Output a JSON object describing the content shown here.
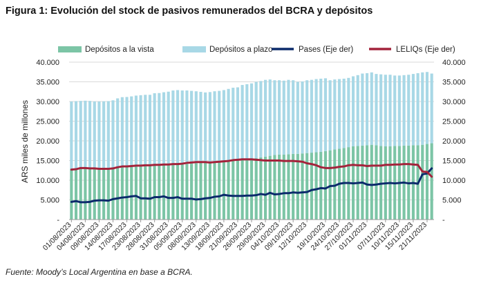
{
  "title": "Figura 1: Evolución del stock de pasivos remunerados del BCRA y depósitos",
  "source": "Fuente: Moody’s Local Argentina en base a BCRA.",
  "chart_data": {
    "type": "bar",
    "stacked": true,
    "ylabel": "ARS miles de millones",
    "ylim": [
      0,
      40000
    ],
    "y2lim": [
      0,
      40000
    ],
    "ytick_labels": [
      "-",
      "5.000",
      "10.000",
      "15.000",
      "20.000",
      "25.000",
      "30.000",
      "35.000",
      "40.000"
    ],
    "y2tick_labels": [
      "-",
      "5.000",
      "10.000",
      "15.000",
      "20.000",
      "25.000",
      "30.000",
      "35.000",
      "40.000"
    ],
    "grid": true,
    "legend_position": "top",
    "categories": [
      "01/08/2023",
      "02/08/2023",
      "03/08/2023",
      "04/08/2023",
      "07/08/2023",
      "08/08/2023",
      "09/08/2023",
      "10/08/2023",
      "11/08/2023",
      "14/08/2023",
      "15/08/2023",
      "16/08/2023",
      "17/08/2023",
      "18/08/2023",
      "22/08/2023",
      "23/08/2023",
      "24/08/2023",
      "25/08/2023",
      "28/08/2023",
      "29/08/2023",
      "30/08/2023",
      "31/08/2023",
      "01/09/2023",
      "04/09/2023",
      "05/09/2023",
      "06/09/2023",
      "07/09/2023",
      "08/09/2023",
      "11/09/2023",
      "12/09/2023",
      "13/09/2023",
      "14/09/2023",
      "15/09/2023",
      "18/09/2023",
      "19/09/2023",
      "20/09/2023",
      "21/09/2023",
      "22/09/2023",
      "25/09/2023",
      "26/09/2023",
      "27/09/2023",
      "28/09/2023",
      "29/09/2023",
      "02/10/2023",
      "03/10/2023",
      "04/10/2023",
      "05/10/2023",
      "06/10/2023",
      "09/10/2023",
      "10/10/2023",
      "11/10/2023",
      "12/10/2023",
      "13/10/2023",
      "17/10/2023",
      "18/10/2023",
      "19/10/2023",
      "20/10/2023",
      "23/10/2023",
      "24/10/2023",
      "25/10/2023",
      "26/10/2023",
      "27/10/2023",
      "30/10/2023",
      "31/10/2023",
      "01/11/2023",
      "02/11/2023",
      "03/11/2023",
      "06/11/2023",
      "07/11/2023",
      "08/11/2023",
      "09/11/2023",
      "10/11/2023",
      "13/11/2023",
      "14/11/2023",
      "15/11/2023",
      "16/11/2023",
      "17/11/2023",
      "21/11/2023",
      "22/11/2023"
    ],
    "xtick_labels": [
      "01/08/2023",
      "04/08/2023",
      "09/08/2023",
      "14/08/2023",
      "17/08/2023",
      "23/08/2023",
      "28/08/2023",
      "31/08/2023",
      "05/09/2023",
      "08/09/2023",
      "13/09/2023",
      "18/09/2023",
      "21/09/2023",
      "26/09/2023",
      "29/09/2023",
      "04/10/2023",
      "09/10/2023",
      "12/10/2023",
      "19/10/2023",
      "24/10/2023",
      "27/10/2023",
      "01/11/2023",
      "07/11/2023",
      "10/11/2023",
      "15/11/2023",
      "21/11/2023"
    ],
    "series": [
      {
        "name": "Depósitos a la vista",
        "kind": "bar",
        "axis": "left",
        "color": "#7cc5a6",
        "values": [
          12900,
          12950,
          13000,
          13050,
          13000,
          13000,
          12950,
          12950,
          13000,
          13100,
          13200,
          13300,
          13350,
          13400,
          13450,
          13500,
          13550,
          13600,
          13700,
          13750,
          13800,
          13850,
          13900,
          13950,
          14000,
          14100,
          14200,
          14300,
          14400,
          14500,
          14550,
          14600,
          14700,
          14800,
          14900,
          15000,
          15100,
          15200,
          15300,
          15400,
          15600,
          15800,
          16000,
          16200,
          16400,
          16500,
          16500,
          16600,
          16700,
          16700,
          16800,
          16900,
          17000,
          17100,
          17200,
          17400,
          17600,
          17800,
          18000,
          18200,
          18400,
          18600,
          18700,
          18800,
          18900,
          19000,
          18900,
          18700,
          18600,
          18600,
          18700,
          18700,
          18800,
          18800,
          18900,
          18900,
          19000,
          19200,
          19400
        ]
      },
      {
        "name": "Depósitos a plazo",
        "kind": "bar",
        "axis": "left",
        "color": "#a8d8e6",
        "values": [
          17100,
          17150,
          17150,
          17150,
          17150,
          17000,
          17050,
          17100,
          17100,
          17200,
          17600,
          17800,
          17800,
          17900,
          18050,
          18100,
          18150,
          18100,
          18400,
          18400,
          18550,
          18650,
          18900,
          18950,
          18800,
          18700,
          18500,
          18300,
          18050,
          17800,
          17850,
          18000,
          18000,
          18100,
          18300,
          18500,
          18500,
          19000,
          19100,
          19200,
          19400,
          19400,
          19500,
          19400,
          19000,
          18900,
          18800,
          18900,
          18700,
          18300,
          18300,
          18500,
          18500,
          18600,
          18600,
          18500,
          17800,
          17800,
          17700,
          17600,
          17600,
          17800,
          18000,
          18300,
          18300,
          18400,
          18100,
          18200,
          18200,
          18200,
          17900,
          17900,
          17900,
          18000,
          18100,
          18300,
          18400,
          18300,
          17700
        ]
      },
      {
        "name": "Pases (Eje der)",
        "kind": "line",
        "axis": "right",
        "color": "#0b2a6b",
        "values": [
          4500,
          4700,
          4400,
          4400,
          4500,
          4800,
          4900,
          4900,
          4800,
          5200,
          5400,
          5600,
          5700,
          5900,
          6000,
          5400,
          5400,
          5300,
          5700,
          5700,
          5900,
          5500,
          5500,
          5700,
          5300,
          5300,
          5300,
          5100,
          5200,
          5400,
          5500,
          5800,
          5900,
          6300,
          6100,
          6000,
          6000,
          6000,
          6100,
          6100,
          6200,
          6500,
          6300,
          6800,
          6400,
          6500,
          6700,
          6700,
          6900,
          6800,
          6900,
          7000,
          7500,
          7700,
          8000,
          7900,
          8500,
          8600,
          9100,
          9300,
          9300,
          9200,
          9300,
          9400,
          8900,
          8800,
          8900,
          9100,
          9200,
          9300,
          9200,
          9300,
          9400,
          9200,
          9300,
          9100,
          11500,
          11700,
          13000
        ]
      },
      {
        "name": "LELIQs (Eje der)",
        "kind": "line",
        "axis": "right",
        "color": "#a3233b",
        "values": [
          12700,
          12800,
          13100,
          13100,
          13000,
          13000,
          12900,
          12900,
          12900,
          13000,
          13300,
          13500,
          13500,
          13600,
          13700,
          13700,
          13800,
          13800,
          13900,
          13900,
          14000,
          14000,
          14100,
          14100,
          14200,
          14400,
          14500,
          14600,
          14600,
          14600,
          14500,
          14600,
          14700,
          14800,
          14900,
          15100,
          15200,
          15300,
          15300,
          15300,
          15200,
          15100,
          15000,
          15000,
          15000,
          15000,
          14900,
          14900,
          14900,
          14800,
          14700,
          14300,
          14100,
          13800,
          13300,
          13100,
          13100,
          13200,
          13400,
          13500,
          13800,
          13900,
          13800,
          13800,
          13600,
          13700,
          13700,
          13700,
          13900,
          13900,
          14000,
          14000,
          14100,
          14100,
          14000,
          13900,
          12200,
          12100,
          10900
        ]
      }
    ]
  }
}
